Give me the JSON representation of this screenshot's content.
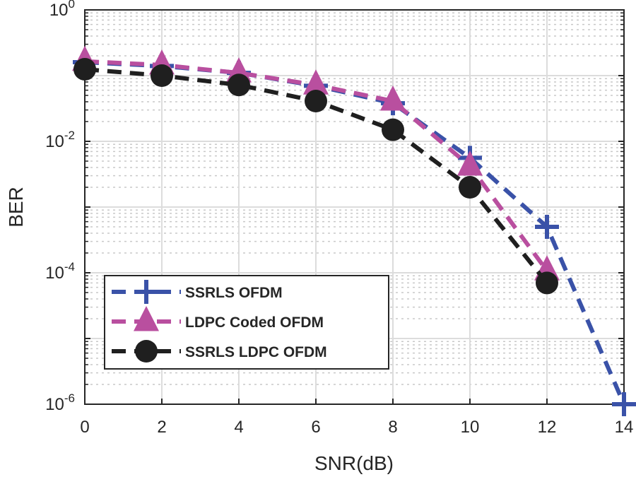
{
  "chart_data": {
    "type": "line",
    "title": "",
    "xlabel": "SNR(dB)",
    "ylabel": "BER",
    "xlim": [
      0,
      14
    ],
    "ylim": [
      1e-06,
      1
    ],
    "yscale": "log",
    "grid": true,
    "minor_grid": true,
    "legend_position": "bottom-left",
    "x_ticks": [
      "0",
      "2",
      "4",
      "6",
      "8",
      "10",
      "12",
      "14"
    ],
    "y_ticks": [
      {
        "base": "10",
        "exp": "0"
      },
      {
        "base": "10",
        "exp": "-2"
      },
      {
        "base": "10",
        "exp": "-4"
      },
      {
        "base": "10",
        "exp": "-6"
      }
    ],
    "series": [
      {
        "name": "SSRLS OFDM",
        "color": "#3a52a8",
        "marker": "plus",
        "line": "dashed",
        "x": [
          0,
          2,
          4,
          6,
          8,
          10,
          12,
          14
        ],
        "y": [
          0.16,
          0.14,
          0.11,
          0.07,
          0.038,
          0.0056,
          0.0005,
          1e-06
        ]
      },
      {
        "name": "LDPC Coded OFDM",
        "color": "#b94f9f",
        "marker": "triangle",
        "line": "dashed",
        "x": [
          0,
          2,
          4,
          6,
          8,
          10,
          12
        ],
        "y": [
          0.165,
          0.145,
          0.11,
          0.072,
          0.041,
          0.0042,
          0.000107
        ]
      },
      {
        "name": "SSRLS LDPC OFDM",
        "color": "#1f1f1f",
        "marker": "circle",
        "line": "dashed",
        "x": [
          0,
          2,
          4,
          6,
          8,
          10,
          12
        ],
        "y": [
          0.125,
          0.1,
          0.072,
          0.041,
          0.015,
          0.002,
          7e-05
        ]
      }
    ]
  }
}
